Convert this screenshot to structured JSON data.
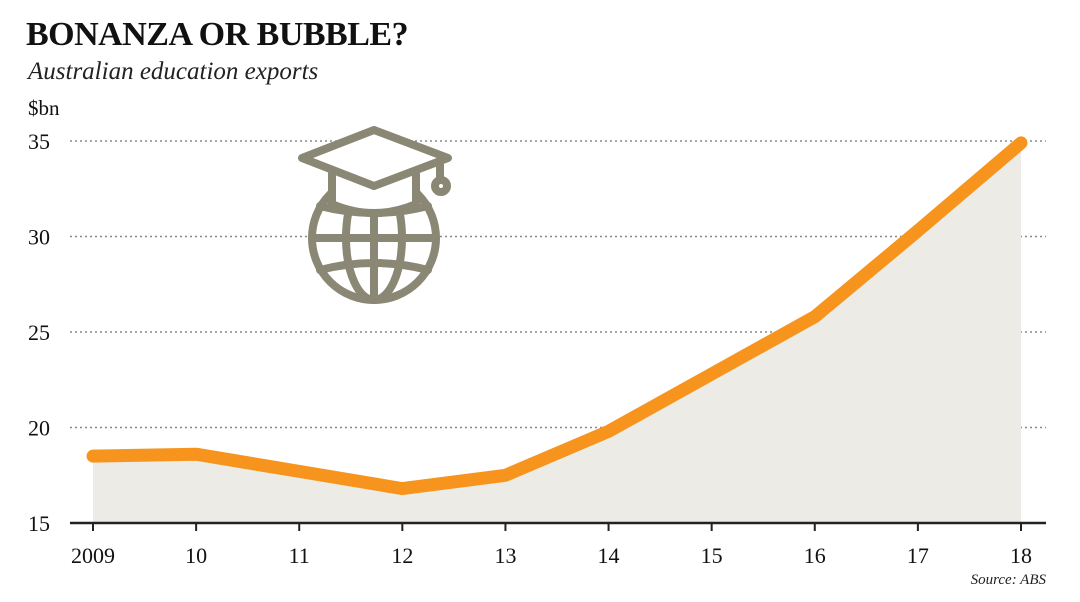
{
  "title": "BONANZA OR BUBBLE?",
  "subtitle": "Australian education exports",
  "source": "Source: ABS",
  "colors": {
    "line": "#F7941D",
    "area": "#ECEBE6",
    "icon": "#8B8775",
    "grid": "#888888",
    "axis": "#222222"
  },
  "icon": "graduation-cap-globe-icon",
  "chart_data": {
    "type": "area",
    "title": "BONANZA OR BUBBLE?",
    "subtitle": "Australian education exports",
    "ylabel": "$bn",
    "ylim": [
      15,
      35
    ],
    "yticks": [
      "15",
      "20",
      "25",
      "30",
      "35"
    ],
    "categories": [
      "2009",
      "10",
      "11",
      "12",
      "13",
      "14",
      "15",
      "16",
      "17",
      "18"
    ],
    "series": [
      {
        "values": [
          18.5,
          18.6,
          17.7,
          16.8,
          17.5,
          19.8,
          22.8,
          25.8,
          30.3,
          34.9
        ]
      }
    ],
    "grid": true,
    "source": "Source: ABS"
  }
}
